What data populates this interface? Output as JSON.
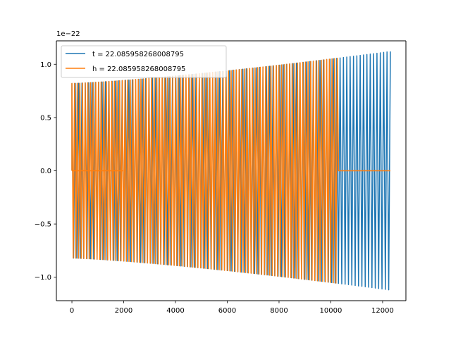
{
  "chart_data": {
    "type": "line",
    "title": "",
    "xlabel": "",
    "ylabel": "",
    "offset_label": "1e−22",
    "xlim": [
      -600,
      12900
    ],
    "ylim": [
      -1.22,
      1.22
    ],
    "x_ticks": [
      0,
      2000,
      4000,
      6000,
      8000,
      10000,
      12000
    ],
    "x_tick_labels": [
      "0",
      "2000",
      "4000",
      "6000",
      "8000",
      "10000",
      "12000"
    ],
    "y_ticks": [
      1.0,
      0.5,
      0.0,
      -0.5,
      -1.0
    ],
    "y_tick_labels": [
      "1.0",
      "0.5",
      "0.0",
      "−0.5",
      "−1.0"
    ],
    "grid": false,
    "legend_location": "upper-left",
    "series": [
      {
        "name": "t = 22.085958268008795",
        "color": "#1f77b4",
        "x_end": 12300,
        "amplitude_start": 0.82,
        "amplitude_end": 1.12,
        "cycles": 95,
        "flat_after": null
      },
      {
        "name": "h = 22.085958268008795",
        "color": "#ff7f0e",
        "x_end": 12300,
        "amplitude_start": 0.82,
        "amplitude_end": 1.12,
        "cycles": 120,
        "flat_after": 10300
      }
    ]
  }
}
